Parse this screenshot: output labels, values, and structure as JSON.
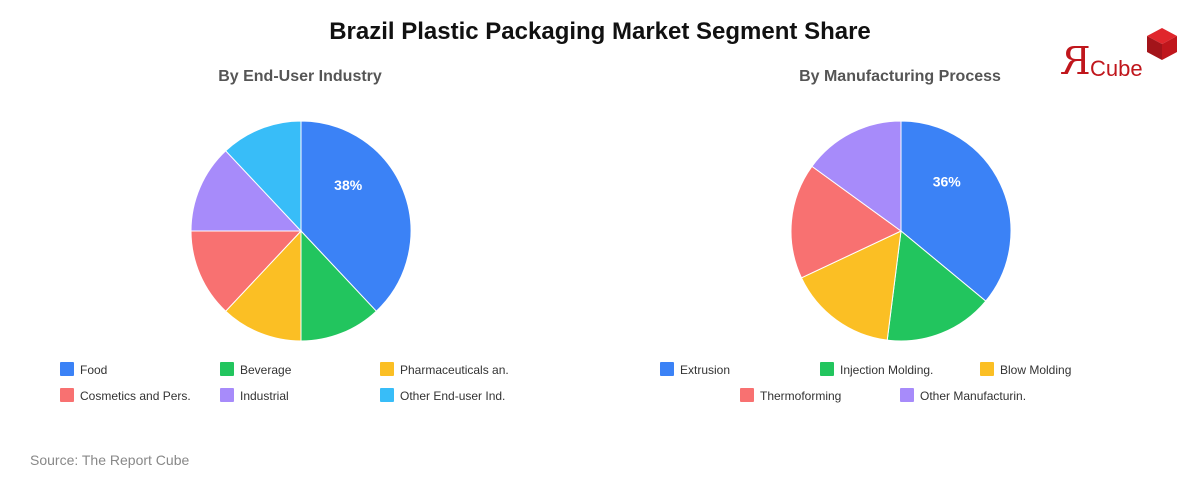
{
  "title": "Brazil Plastic Packaging Market Segment Share",
  "source": "Source: The Report Cube",
  "logo": {
    "mark": "R",
    "text": "Cube",
    "color": "#c0161c",
    "icon": "cube-icon"
  },
  "chart_data": [
    {
      "type": "pie",
      "title": "By End-User Industry",
      "categories": [
        "Food",
        "Beverage",
        "Pharmaceuticals an.",
        "Cosmetics and Pers.",
        "Industrial",
        "Other End-user Ind."
      ],
      "values": [
        38,
        12,
        12,
        13,
        13,
        12
      ],
      "slice_order": [
        "Food",
        "Beverage",
        "Pharmaceuticals an.",
        "Cosmetics and Pers.",
        "Industrial",
        "Other End-user Ind."
      ],
      "colors": [
        "#3b82f6",
        "#22c55e",
        "#fbbf24",
        "#f87171",
        "#a78bfa",
        "#38bdf8"
      ],
      "data_labels": [
        {
          "category": "Food",
          "text": "38%"
        }
      ],
      "legend": "bottom"
    },
    {
      "type": "pie",
      "title": "By Manufacturing Process",
      "categories": [
        "Extrusion",
        "Injection Molding.",
        "Blow Molding",
        "Thermoforming",
        "Other Manufacturin."
      ],
      "values": [
        36,
        16,
        16,
        17,
        15
      ],
      "slice_order": [
        "Extrusion",
        "Injection Molding.",
        "Blow Molding",
        "Thermoforming",
        "Other Manufacturin."
      ],
      "colors": [
        "#3b82f6",
        "#22c55e",
        "#fbbf24",
        "#f87171",
        "#a78bfa"
      ],
      "data_labels": [
        {
          "category": "Extrusion",
          "text": "36%"
        }
      ],
      "legend": "bottom"
    }
  ]
}
